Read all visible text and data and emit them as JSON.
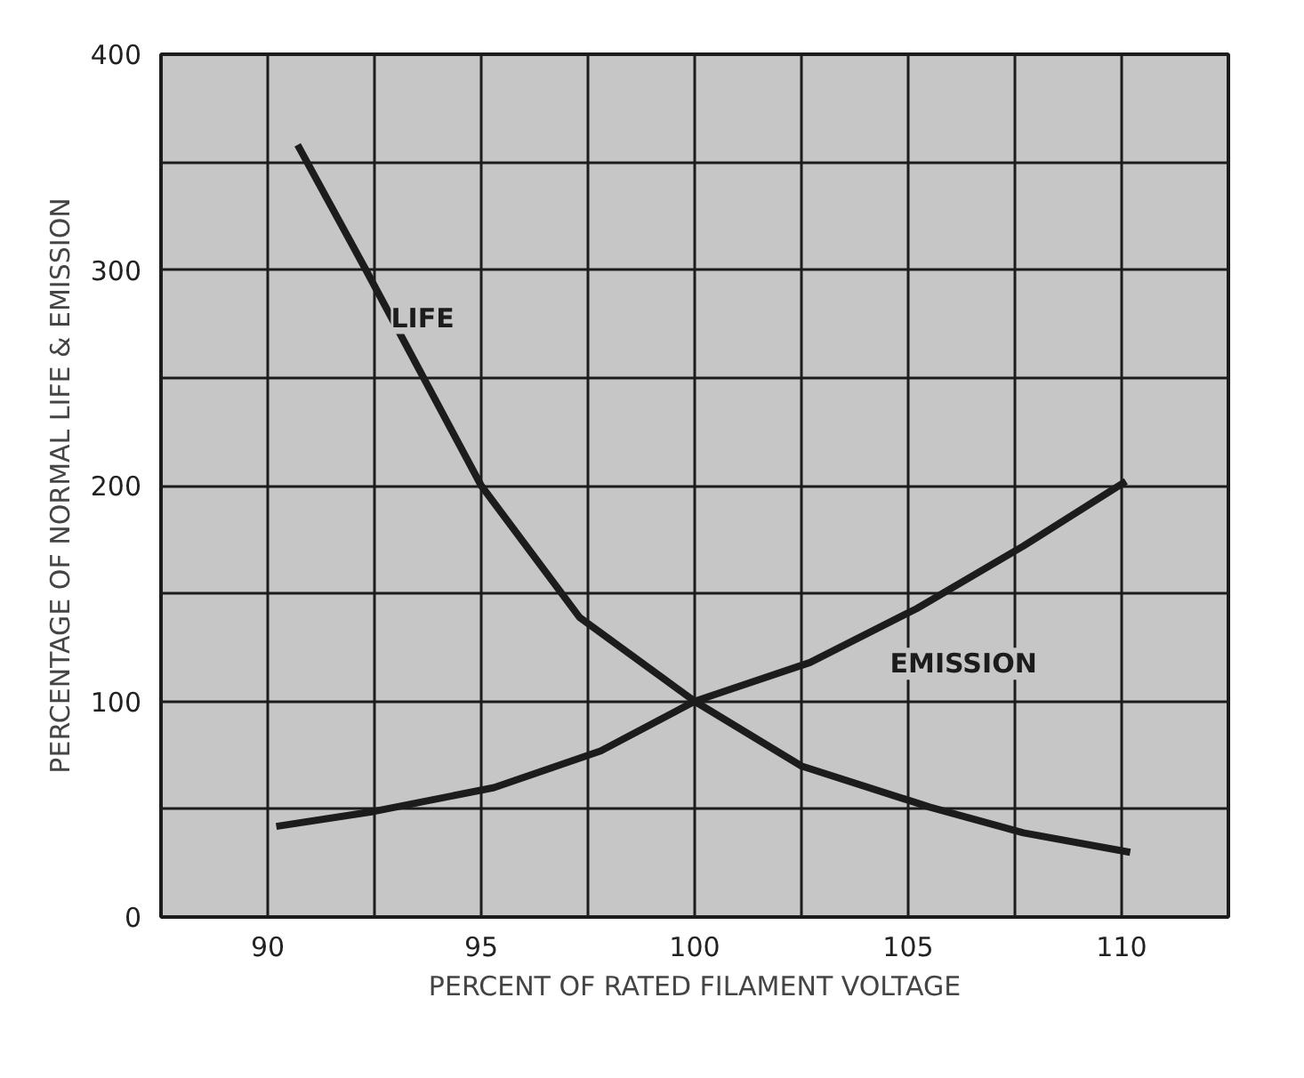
{
  "chart_data": {
    "type": "line",
    "xlabel": "PERCENT OF RATED FILAMENT VOLTAGE",
    "ylabel": "PERCENTAGE OF NORMAL LIFE & EMISSION",
    "xlim": [
      87.5,
      112.5
    ],
    "ylim": [
      0,
      400
    ],
    "xticks": [
      {
        "value": 87.5,
        "label": null
      },
      90,
      {
        "value": 92.5,
        "label": null
      },
      95,
      {
        "value": 97.5,
        "label": null
      },
      100,
      {
        "value": 102.5,
        "label": null
      },
      105,
      {
        "value": 107.5,
        "label": null
      },
      110,
      {
        "value": 112.5,
        "label": null
      }
    ],
    "yticks": [
      0,
      {
        "value": 50,
        "label": null
      },
      100,
      {
        "value": 150,
        "label": null
      },
      200,
      {
        "value": 250,
        "label": null
      },
      300,
      {
        "value": 350,
        "label": null
      },
      400
    ],
    "grid": true,
    "marker": "none",
    "line_style": "solid",
    "series": [
      {
        "name": "LIFE",
        "color": "#1c1c1c",
        "x": [
          90.7,
          92.3,
          95,
          97.3,
          100,
          102.5,
          105.5,
          107.7,
          110.2
        ],
        "values": [
          358,
          300,
          200,
          139,
          100,
          70,
          51,
          39,
          30
        ]
      },
      {
        "name": "EMISSION",
        "color": "#1c1c1c",
        "x": [
          90.2,
          92.5,
          95.3,
          97.8,
          100,
          102.7,
          105.2,
          107.7,
          110.1
        ],
        "values": [
          42,
          49,
          60,
          77,
          100,
          118,
          143,
          172,
          202
        ]
      }
    ]
  }
}
